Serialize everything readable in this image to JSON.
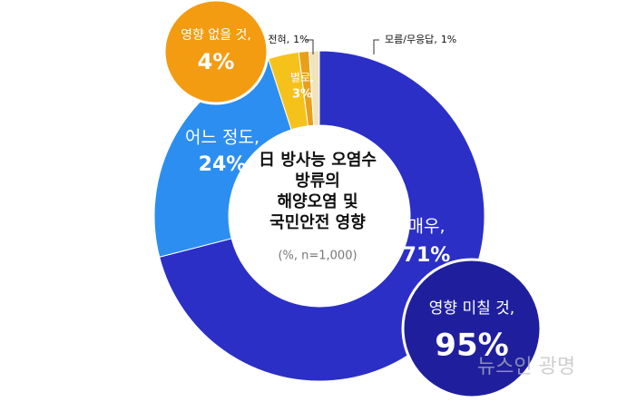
{
  "chart_data": {
    "type": "pie",
    "donut": true,
    "title": [
      "日 방사능 오염수",
      "방류의",
      "해양오염 및",
      "국민안전 영향"
    ],
    "subtitle": "(%, n=1,000)",
    "categories": [
      "매우,",
      "어느 정도,",
      "별로,",
      "전혀,",
      "모름/무응답,"
    ],
    "values": [
      71,
      24,
      3,
      1,
      1
    ],
    "value_labels": [
      "71%",
      "24%",
      "3%",
      "1%",
      "1%"
    ],
    "colors": [
      "#2b2fc6",
      "#2c8ef0",
      "#f5c21b",
      "#e89f1a",
      "#efe4bd"
    ],
    "summaries": [
      {
        "label": "영향 미칠 것,",
        "value": 95,
        "value_label": "95%",
        "color": "#1f1f9e"
      },
      {
        "label": "영향 없을 것,",
        "value": 4,
        "value_label": "4%",
        "color": "#f39c12"
      }
    ],
    "watermark": "뉴스인 광명"
  }
}
